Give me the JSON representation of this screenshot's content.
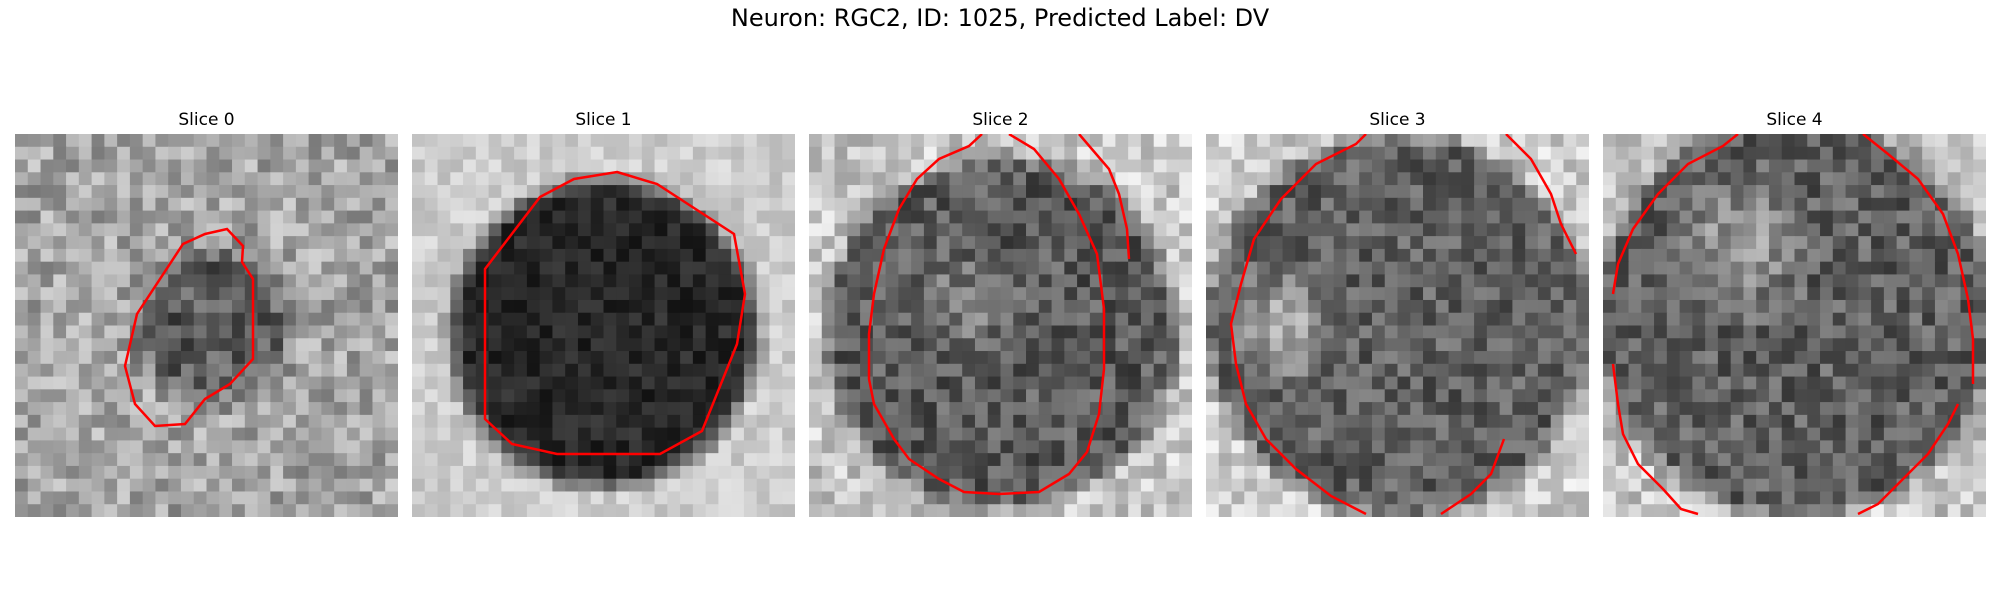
{
  "figure": {
    "title": "Neuron: RGC2, ID: 1025, Predicted Label: DV"
  },
  "panels": [
    {
      "title": "Slice 0",
      "kind": "speckle-blob"
    },
    {
      "title": "Slice 1",
      "kind": "dark-disk"
    },
    {
      "title": "Slice 2",
      "kind": "mid-disk"
    },
    {
      "title": "Slice 3",
      "kind": "mid-disk-bright-left"
    },
    {
      "title": "Slice 4",
      "kind": "mid-disk-bright-top"
    }
  ],
  "colors": {
    "contour": "#ff0000",
    "background": "#ffffff"
  }
}
